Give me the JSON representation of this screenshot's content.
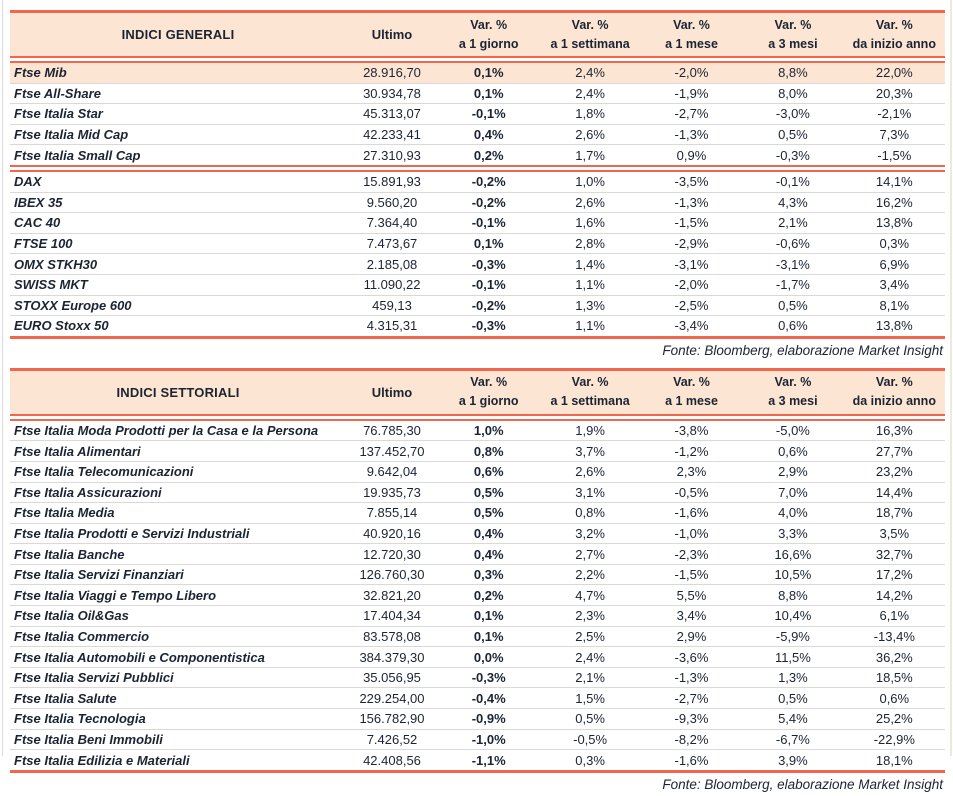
{
  "colors": {
    "accent": "#f2664d",
    "header_bg": "#fce5d2",
    "separator": "#d9d9d9",
    "text": "#1b2433"
  },
  "source_label": "Fonte: Bloomberg, elaborazione Market Insight",
  "tables": [
    {
      "title": "INDICI GENERALI",
      "header": {
        "ultimo": "Ultimo",
        "var_cols": [
          {
            "l1": "Var. %",
            "l2": "a 1 giorno"
          },
          {
            "l1": "Var. %",
            "l2": "a 1 settimana"
          },
          {
            "l1": "Var. %",
            "l2": "a 1 mese"
          },
          {
            "l1": "Var. %",
            "l2": "a 3 mesi"
          },
          {
            "l1": "Var. %",
            "l2": "da inizio anno"
          }
        ]
      },
      "groups": [
        [
          {
            "label": "Ftse Mib",
            "highlight": true,
            "values": [
              "28.916,70",
              "0,1%",
              "2,4%",
              "-2,0%",
              "8,8%",
              "22,0%"
            ]
          },
          {
            "label": "Ftse All-Share",
            "values": [
              "30.934,78",
              "0,1%",
              "2,4%",
              "-1,9%",
              "8,0%",
              "20,3%"
            ]
          },
          {
            "label": "Ftse Italia Star",
            "values": [
              "45.313,07",
              "-0,1%",
              "1,8%",
              "-2,7%",
              "-3,0%",
              "-2,1%"
            ]
          },
          {
            "label": "Ftse Italia Mid Cap",
            "values": [
              "42.233,41",
              "0,4%",
              "2,6%",
              "-1,3%",
              "0,5%",
              "7,3%"
            ]
          },
          {
            "label": "Ftse Italia Small Cap",
            "values": [
              "27.310,93",
              "0,2%",
              "1,7%",
              "0,9%",
              "-0,3%",
              "-1,5%"
            ]
          }
        ],
        [
          {
            "label": "DAX",
            "values": [
              "15.891,93",
              "-0,2%",
              "1,0%",
              "-3,5%",
              "-0,1%",
              "14,1%"
            ]
          },
          {
            "label": "IBEX 35",
            "values": [
              "9.560,20",
              "-0,2%",
              "2,6%",
              "-1,3%",
              "4,3%",
              "16,2%"
            ]
          },
          {
            "label": "CAC 40",
            "values": [
              "7.364,40",
              "-0,1%",
              "1,6%",
              "-1,5%",
              "2,1%",
              "13,8%"
            ]
          },
          {
            "label": "FTSE 100",
            "values": [
              "7.473,67",
              "0,1%",
              "2,8%",
              "-2,9%",
              "-0,6%",
              "0,3%"
            ]
          },
          {
            "label": "OMX STKH30",
            "values": [
              "2.185,08",
              "-0,3%",
              "1,4%",
              "-3,1%",
              "-3,1%",
              "6,9%"
            ]
          },
          {
            "label": "SWISS MKT",
            "values": [
              "11.090,22",
              "-0,1%",
              "1,1%",
              "-2,0%",
              "-1,7%",
              "3,4%"
            ]
          },
          {
            "label": "STOXX Europe 600",
            "values": [
              "459,13",
              "-0,2%",
              "1,3%",
              "-2,5%",
              "0,5%",
              "8,1%"
            ]
          },
          {
            "label": "EURO Stoxx 50",
            "values": [
              "4.315,31",
              "-0,3%",
              "1,1%",
              "-3,4%",
              "0,6%",
              "13,8%"
            ]
          }
        ]
      ]
    },
    {
      "title": "INDICI SETTORIALI",
      "header": {
        "ultimo": "Ultimo",
        "var_cols": [
          {
            "l1": "Var. %",
            "l2": "a 1 giorno"
          },
          {
            "l1": "Var. %",
            "l2": "a 1 settimana"
          },
          {
            "l1": "Var. %",
            "l2": "a 1 mese"
          },
          {
            "l1": "Var. %",
            "l2": "a 3 mesi"
          },
          {
            "l1": "Var. %",
            "l2": "da inizio anno"
          }
        ]
      },
      "groups": [
        [
          {
            "label": "Ftse Italia Moda Prodotti per la Casa e la Persona",
            "values": [
              "76.785,30",
              "1,0%",
              "1,9%",
              "-3,8%",
              "-5,0%",
              "16,3%"
            ]
          },
          {
            "label": "Ftse Italia Alimentari",
            "values": [
              "137.452,70",
              "0,8%",
              "3,7%",
              "-1,2%",
              "0,6%",
              "27,7%"
            ]
          },
          {
            "label": "Ftse Italia Telecomunicazioni",
            "values": [
              "9.642,04",
              "0,6%",
              "2,6%",
              "2,3%",
              "2,9%",
              "23,2%"
            ]
          },
          {
            "label": "Ftse Italia Assicurazioni",
            "values": [
              "19.935,73",
              "0,5%",
              "3,1%",
              "-0,5%",
              "7,0%",
              "14,4%"
            ]
          },
          {
            "label": "Ftse Italia Media",
            "values": [
              "7.855,14",
              "0,5%",
              "0,8%",
              "-1,6%",
              "4,0%",
              "18,7%"
            ]
          },
          {
            "label": "Ftse Italia Prodotti e Servizi Industriali",
            "values": [
              "40.920,16",
              "0,4%",
              "3,2%",
              "-1,0%",
              "3,3%",
              "3,5%"
            ]
          },
          {
            "label": "Ftse Italia Banche",
            "values": [
              "12.720,30",
              "0,4%",
              "2,7%",
              "-2,3%",
              "16,6%",
              "32,7%"
            ]
          },
          {
            "label": "Ftse Italia Servizi Finanziari",
            "values": [
              "126.760,30",
              "0,3%",
              "2,2%",
              "-1,5%",
              "10,5%",
              "17,2%"
            ]
          },
          {
            "label": "Ftse Italia Viaggi e Tempo Libero",
            "values": [
              "32.821,20",
              "0,2%",
              "4,7%",
              "5,5%",
              "8,8%",
              "14,2%"
            ]
          },
          {
            "label": "Ftse Italia Oil&Gas",
            "values": [
              "17.404,34",
              "0,1%",
              "2,3%",
              "3,4%",
              "10,4%",
              "6,1%"
            ]
          },
          {
            "label": "Ftse Italia Commercio",
            "values": [
              "83.578,08",
              "0,1%",
              "2,5%",
              "2,9%",
              "-5,9%",
              "-13,4%"
            ]
          },
          {
            "label": "Ftse Italia Automobili e Componentistica",
            "values": [
              "384.379,30",
              "0,0%",
              "2,4%",
              "-3,6%",
              "11,5%",
              "36,2%"
            ]
          },
          {
            "label": "Ftse Italia Servizi Pubblici",
            "values": [
              "35.056,95",
              "-0,3%",
              "2,1%",
              "-1,3%",
              "1,3%",
              "18,5%"
            ]
          },
          {
            "label": "Ftse Italia Salute",
            "values": [
              "229.254,00",
              "-0,4%",
              "1,5%",
              "-2,7%",
              "0,5%",
              "0,6%"
            ]
          },
          {
            "label": "Ftse Italia Tecnologia",
            "values": [
              "156.782,90",
              "-0,9%",
              "0,5%",
              "-9,3%",
              "5,4%",
              "25,2%"
            ]
          },
          {
            "label": "Ftse Italia Beni Immobili",
            "values": [
              "7.426,52",
              "-1,0%",
              "-0,5%",
              "-8,2%",
              "-6,7%",
              "-22,9%"
            ]
          },
          {
            "label": "Ftse Italia Edilizia e Materiali",
            "values": [
              "42.408,56",
              "-1,1%",
              "0,3%",
              "-1,6%",
              "3,9%",
              "18,1%"
            ]
          }
        ]
      ]
    }
  ]
}
